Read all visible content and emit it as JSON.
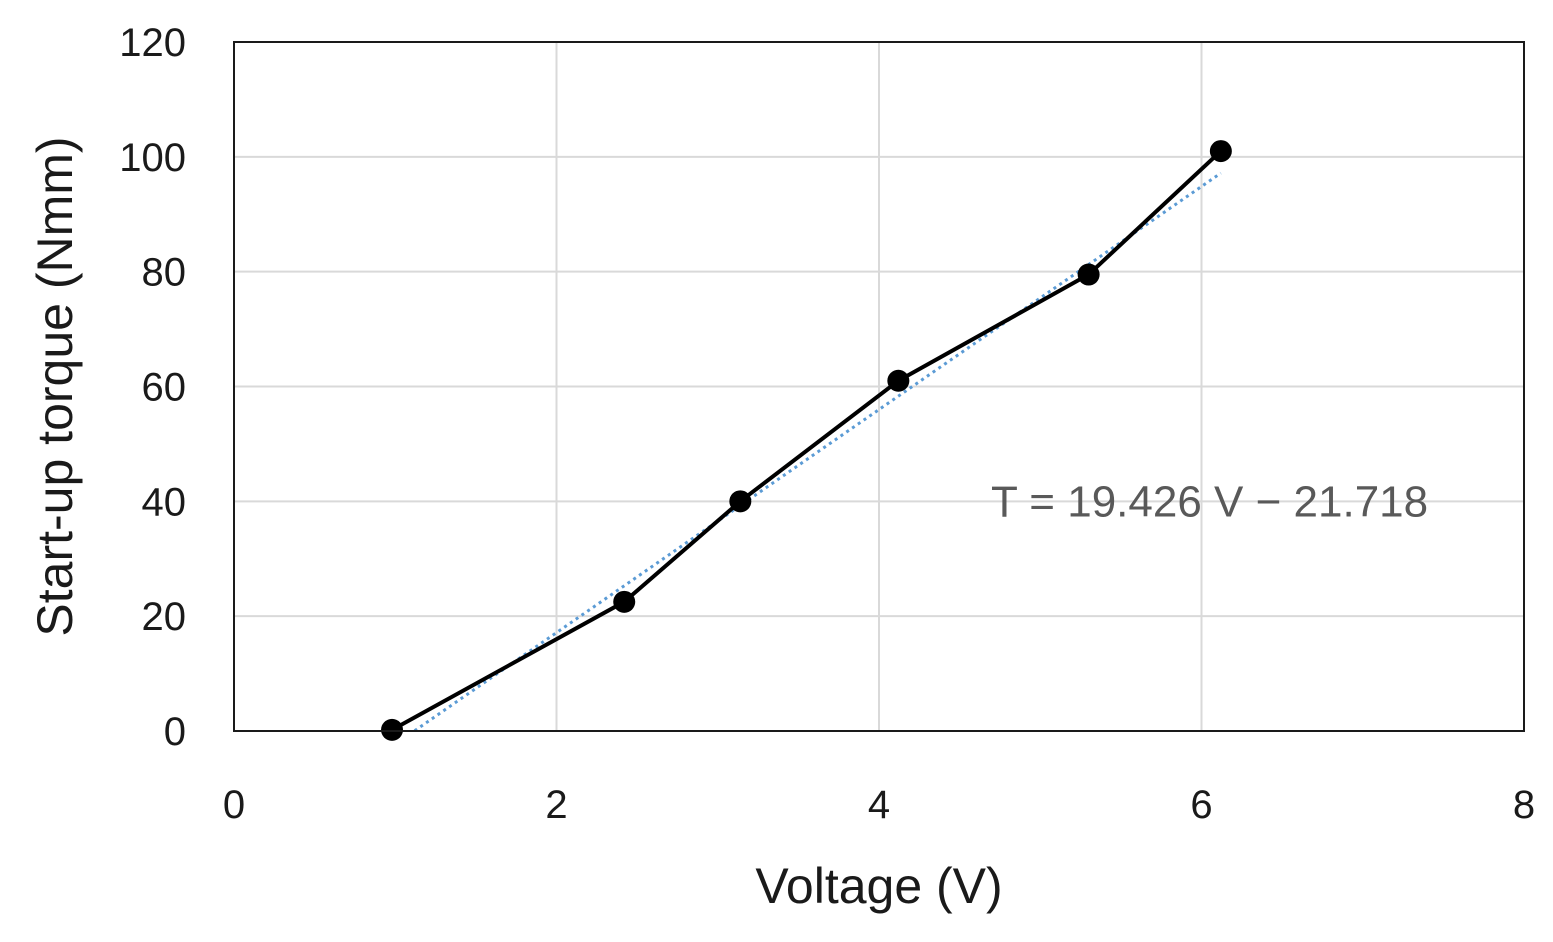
{
  "chart_data": {
    "type": "line",
    "xlabel": "Voltage (V)",
    "ylabel": "Start-up torque (Nmm)",
    "xlim": [
      0,
      8
    ],
    "ylim": [
      0,
      120
    ],
    "xticks": [
      0,
      2,
      4,
      6,
      8
    ],
    "yticks": [
      0,
      20,
      40,
      60,
      80,
      100,
      120
    ],
    "grid": true,
    "legend": "none",
    "series": [
      {
        "color": "#000000",
        "marker": "circle",
        "x": [
          0.98,
          2.42,
          3.14,
          4.12,
          5.3,
          6.12
        ],
        "y": [
          0.2,
          22.5,
          40,
          61,
          79.5,
          101
        ]
      }
    ],
    "trendline": {
      "style": "dotted",
      "color": "#5b9bd5",
      "slope": 19.426,
      "intercept": -21.718,
      "x_range": [
        1.12,
        6.12
      ]
    },
    "annotations": [
      {
        "text": "T = 19.426 V − 21.718",
        "x": 6.05,
        "y": 40
      }
    ],
    "colors": {
      "grid": "#d9d9d9",
      "plot_border": "#1a1a1a",
      "series_line": "#000000",
      "trendline": "#5b9bd5",
      "annotation": "#595959"
    }
  }
}
